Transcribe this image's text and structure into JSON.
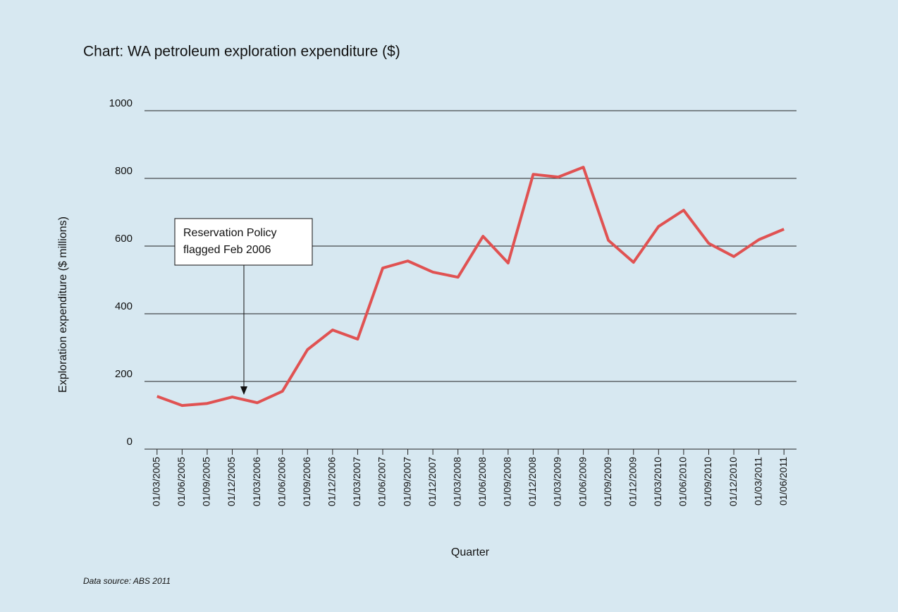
{
  "chart_data": {
    "type": "line",
    "title": "Chart: WA petroleum exploration expenditure ($)",
    "y_label": "Exploration expenditure ($ millions)",
    "x_label": "Quarter",
    "source": "Data source: ABS 2011",
    "annotation": [
      "Reservation Policy",
      "flagged Feb 2006"
    ],
    "categories": [
      "01/03/2005",
      "01/06/2005",
      "01/09/2005",
      "01/12/2005",
      "01/03/2006",
      "01/06/2006",
      "01/09/2006",
      "01/12/2006",
      "01/03/2007",
      "01/06/2007",
      "01/09/2007",
      "01/12/2007",
      "01/03/2008",
      "01/06/2008",
      "01/09/2008",
      "01/12/2008",
      "01/03/2009",
      "01/06/2009",
      "01/09/2009",
      "01/12/2009",
      "01/03/2010",
      "01/06/2010",
      "01/09/2010",
      "01/12/2010",
      "01/03/2011",
      "01/06/2011"
    ],
    "values": [
      156,
      129,
      135,
      154,
      137,
      171,
      294,
      352,
      325,
      535,
      556,
      523,
      508,
      629,
      550,
      812,
      804,
      833,
      617,
      552,
      658,
      706,
      608,
      569,
      619,
      650
    ],
    "color": "#e05252",
    "ylim": [
      0,
      1000
    ],
    "yticks": [
      0,
      200,
      400,
      600,
      800,
      1000
    ],
    "grid": true
  }
}
